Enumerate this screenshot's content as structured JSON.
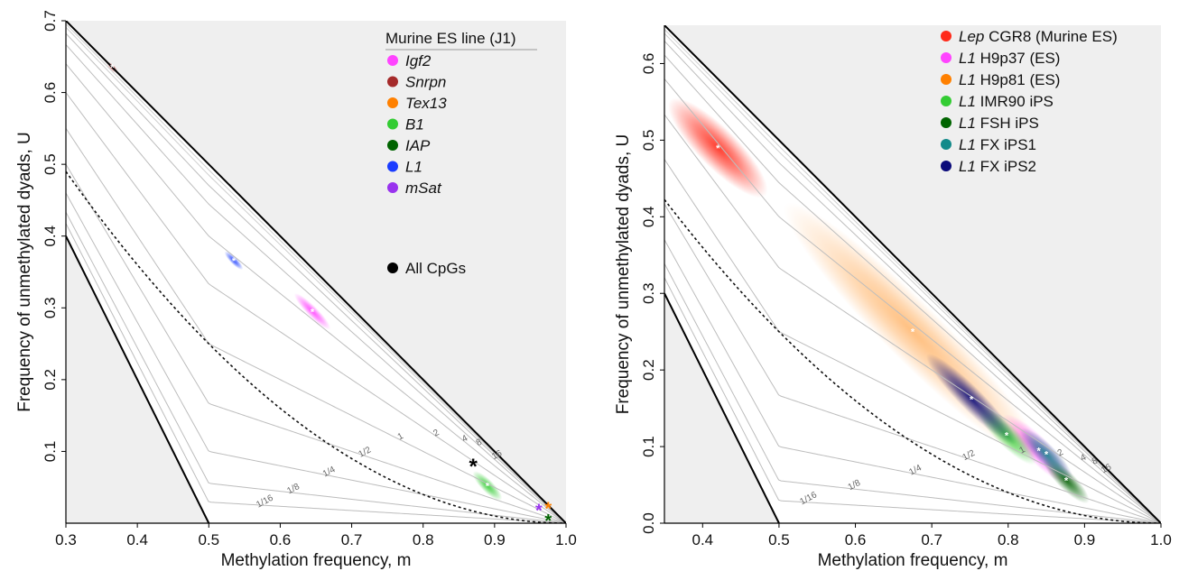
{
  "panels": [
    {
      "id": "left",
      "xlabel": "Methylation frequency, m",
      "ylabel": "Frequency of unmethylated dyads, U",
      "xlim": [
        0.3,
        1.0
      ],
      "ylim": [
        0.0,
        0.7
      ],
      "xticks": [
        {
          "v": 0.3,
          "label": "0.3"
        },
        {
          "v": 0.4,
          "label": "0.4"
        },
        {
          "v": 0.5,
          "label": "0.5"
        },
        {
          "v": 0.6,
          "label": "0.6"
        },
        {
          "v": 0.7,
          "label": "0.7"
        },
        {
          "v": 0.8,
          "label": "0.8"
        },
        {
          "v": 0.9,
          "label": "0.9"
        },
        {
          "v": 1.0,
          "label": "1.0"
        }
      ],
      "yticks": [
        {
          "v": 0.1,
          "label": "0.1"
        },
        {
          "v": 0.2,
          "label": "0.2"
        },
        {
          "v": 0.3,
          "label": "0.3"
        },
        {
          "v": 0.4,
          "label": "0.4"
        },
        {
          "v": 0.5,
          "label": "0.5"
        },
        {
          "v": 0.6,
          "label": "0.6"
        },
        {
          "v": 0.7,
          "label": "0.7"
        }
      ],
      "legend_title": "Murine ES line (J1)",
      "legend": [
        {
          "italic": "Igf2",
          "rest": "",
          "color": "#ff44ff"
        },
        {
          "italic": "Snrpn",
          "rest": "",
          "color": "#a52a2a"
        },
        {
          "italic": "Tex13",
          "rest": "",
          "color": "#ff8000"
        },
        {
          "italic": "B1",
          "rest": "",
          "color": "#33cc33"
        },
        {
          "italic": "IAP",
          "rest": "",
          "color": "#006400"
        },
        {
          "italic": "L1",
          "rest": "",
          "color": "#1a3cff"
        },
        {
          "italic": "mSat",
          "rest": "",
          "color": "#9933ee"
        }
      ],
      "extra_legend": {
        "label": "All CpGs",
        "color": "#000000"
      },
      "contour_labels": [
        "16",
        "8",
        "4",
        "2",
        "1",
        "1/2",
        "1/4",
        "1/8",
        "1/16"
      ]
    },
    {
      "id": "right",
      "xlabel": "Methylation frequency, m",
      "ylabel": "Frequency of unmethylated dyads, U",
      "xlim": [
        0.35,
        1.0
      ],
      "ylim": [
        0.0,
        0.65
      ],
      "xticks": [
        {
          "v": 0.4,
          "label": "0.4"
        },
        {
          "v": 0.5,
          "label": "0.5"
        },
        {
          "v": 0.6,
          "label": "0.6"
        },
        {
          "v": 0.7,
          "label": "0.7"
        },
        {
          "v": 0.8,
          "label": "0.8"
        },
        {
          "v": 0.9,
          "label": "0.9"
        },
        {
          "v": 1.0,
          "label": "1.0"
        }
      ],
      "yticks": [
        {
          "v": 0.0,
          "label": "0.0"
        },
        {
          "v": 0.1,
          "label": "0.1"
        },
        {
          "v": 0.2,
          "label": "0.2"
        },
        {
          "v": 0.3,
          "label": "0.3"
        },
        {
          "v": 0.4,
          "label": "0.4"
        },
        {
          "v": 0.5,
          "label": "0.5"
        },
        {
          "v": 0.6,
          "label": "0.6"
        }
      ],
      "legend_title": "",
      "legend": [
        {
          "italic": "Lep",
          "rest": " CGR8 (Murine ES)",
          "color": "#ff2a1a"
        },
        {
          "italic": "L1",
          "rest": " H9p37 (ES)",
          "color": "#ff44ff"
        },
        {
          "italic": "L1",
          "rest": " H9p81 (ES)",
          "color": "#ff8000"
        },
        {
          "italic": "L1",
          "rest": " IMR90 iPS",
          "color": "#33cc33"
        },
        {
          "italic": "L1",
          "rest": " FSH iPS",
          "color": "#006400"
        },
        {
          "italic": "L1",
          "rest": " FX iPS1",
          "color": "#138a8a"
        },
        {
          "italic": "L1",
          "rest": " FX iPS2",
          "color": "#0a0a7a"
        }
      ],
      "contour_labels": [
        "16",
        "8",
        "4",
        "2",
        "1",
        "1/2",
        "1/4",
        "1/8",
        "1/16"
      ]
    }
  ],
  "chart_data": [
    {
      "type": "scatter",
      "title": "",
      "xlabel": "Methylation frequency, m",
      "ylabel": "Frequency of unmethylated dyads, U",
      "xlim": [
        0.3,
        1.0
      ],
      "ylim": [
        0.0,
        0.7
      ],
      "grid": false,
      "legend_position": "top-right",
      "contour_ratios": [
        "1/16",
        "1/8",
        "1/4",
        "1/2",
        "1",
        "2",
        "4",
        "8",
        "16"
      ],
      "series": [
        {
          "name": "Igf2",
          "color": "#ff44ff",
          "x": [
            0.645
          ],
          "y": [
            0.295
          ]
        },
        {
          "name": "Snrpn",
          "color": "#a52a2a",
          "x": [
            0.365
          ],
          "y": [
            0.635
          ]
        },
        {
          "name": "Tex13",
          "color": "#ff8000",
          "x": [
            0.975
          ],
          "y": [
            0.021
          ]
        },
        {
          "name": "B1",
          "color": "#33cc33",
          "x": [
            0.89
          ],
          "y": [
            0.052
          ]
        },
        {
          "name": "IAP",
          "color": "#006400",
          "x": [
            0.975
          ],
          "y": [
            0.004
          ]
        },
        {
          "name": "L1",
          "color": "#1a3cff",
          "x": [
            0.535
          ],
          "y": [
            0.366
          ]
        },
        {
          "name": "mSat",
          "color": "#9933ee",
          "x": [
            0.962
          ],
          "y": [
            0.018
          ]
        },
        {
          "name": "All CpGs",
          "color": "#000000",
          "x": [
            0.87
          ],
          "y": [
            0.079
          ]
        }
      ]
    },
    {
      "type": "scatter",
      "title": "",
      "xlabel": "Methylation frequency, m",
      "ylabel": "Frequency of unmethylated dyads, U",
      "xlim": [
        0.35,
        1.0
      ],
      "ylim": [
        0.0,
        0.65
      ],
      "grid": false,
      "legend_position": "top-right",
      "contour_ratios": [
        "1/16",
        "1/8",
        "1/4",
        "1/2",
        "1",
        "2",
        "4",
        "8",
        "16"
      ],
      "series": [
        {
          "name": "Lep CGR8 (Murine ES)",
          "color": "#ff2a1a",
          "x": [
            0.42
          ],
          "y": [
            0.49
          ]
        },
        {
          "name": "L1 H9p37 (ES)",
          "color": "#ff44ff",
          "x": [
            0.84
          ],
          "y": [
            0.095
          ]
        },
        {
          "name": "L1 H9p81 (ES)",
          "color": "#ff8000",
          "x": [
            0.675
          ],
          "y": [
            0.25
          ]
        },
        {
          "name": "L1 IMR90 iPS",
          "color": "#33cc33",
          "x": [
            0.798
          ],
          "y": [
            0.115
          ]
        },
        {
          "name": "L1 FSH iPS",
          "color": "#006400",
          "x": [
            0.876
          ],
          "y": [
            0.056
          ]
        },
        {
          "name": "L1 FX iPS1",
          "color": "#138a8a",
          "x": [
            0.85
          ],
          "y": [
            0.09
          ]
        },
        {
          "name": "L1 FX iPS2",
          "color": "#0a0a7a",
          "x": [
            0.752
          ],
          "y": [
            0.162
          ]
        }
      ]
    }
  ]
}
